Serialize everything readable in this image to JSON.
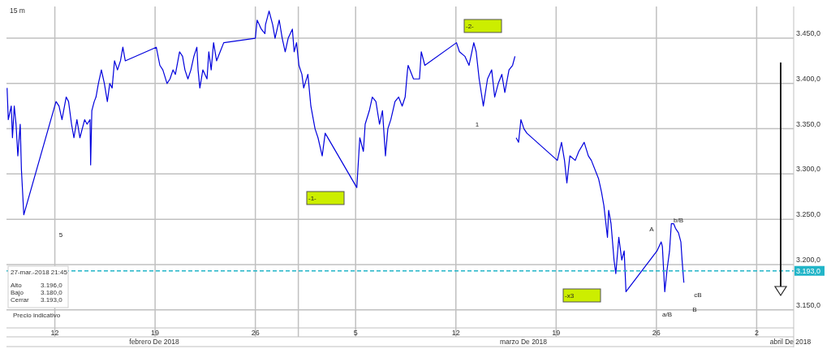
{
  "chart_data": {
    "type": "line",
    "title": "15 m",
    "x": [
      "2018-02-08T16:00",
      "2018-02-08T18:00",
      "2018-02-08T23:00",
      "2018-02-09T01:00",
      "2018-02-09T04:00",
      "2018-02-09T07:00",
      "2018-02-09T10:00",
      "2018-02-09T14:00",
      "2018-02-09T16:00",
      "2018-02-09T20:00",
      "2018-02-12T02:00",
      "2018-02-12T07:00",
      "2018-02-12T12:00",
      "2018-02-12T19:00",
      "2018-02-12T23:00",
      "2018-02-13T04:00",
      "2018-02-13T08:00",
      "2018-02-13T13:00",
      "2018-02-13T18:00",
      "2018-02-14T02:00",
      "2018-02-14T06:00",
      "2018-02-14T11:00",
      "2018-02-14T12:00",
      "2018-02-14T14:00",
      "2018-02-14T18:00",
      "2018-02-14T21:00",
      "2018-02-15T01:00",
      "2018-02-15T06:00",
      "2018-02-15T11:00",
      "2018-02-15T16:00",
      "2018-02-15T20:00",
      "2018-02-16T00:00",
      "2018-02-16T04:00",
      "2018-02-16T09:00",
      "2018-02-16T14:00",
      "2018-02-16T18:00",
      "2018-02-16T22:00",
      "2018-02-19T02:00",
      "2018-02-19T08:00",
      "2018-02-19T13:00",
      "2018-02-19T20:00",
      "2018-02-20T01:00",
      "2018-02-20T06:00",
      "2018-02-20T10:00",
      "2018-02-20T17:00",
      "2018-02-20T22:00",
      "2018-02-21T02:00",
      "2018-02-21T07:00",
      "2018-02-21T12:00",
      "2018-02-21T17:00",
      "2018-02-21T22:00",
      "2018-02-22T00:00",
      "2018-02-22T03:00",
      "2018-02-22T08:00",
      "2018-02-22T15:00",
      "2018-02-22T18:00",
      "2018-02-22T22:00",
      "2018-02-23T02:00",
      "2018-02-23T07:00",
      "2018-02-23T13:00",
      "2018-02-23T19:00",
      "2018-02-26T00:00",
      "2018-02-26T03:00",
      "2018-02-26T10:00",
      "2018-02-26T16:00",
      "2018-02-26T17:00",
      "2018-02-26T23:00",
      "2018-02-27T05:00",
      "2018-02-27T09:00",
      "2018-02-27T16:00",
      "2018-02-27T21:00",
      "2018-02-28T02:00",
      "2018-02-28T07:00",
      "2018-02-28T14:00",
      "2018-02-28T17:00",
      "2018-02-28T21:00",
      "2018-03-01T01:00",
      "2018-03-01T06:00",
      "2018-03-01T09:00",
      "2018-03-01T16:00",
      "2018-03-01T21:00",
      "2018-03-02T04:00",
      "2018-03-02T09:00",
      "2018-03-02T16:00",
      "2018-03-02T21:00",
      "2018-03-05T02:00",
      "2018-03-05T07:00",
      "2018-03-05T13:00",
      "2018-03-05T16:00",
      "2018-03-05T23:00",
      "2018-03-06T04:00",
      "2018-03-06T10:00",
      "2018-03-06T16:00",
      "2018-03-06T21:00",
      "2018-03-07T02:00",
      "2018-03-07T06:00",
      "2018-03-07T11:00",
      "2018-03-07T18:00",
      "2018-03-08T00:00",
      "2018-03-08T06:00",
      "2018-03-08T11:00",
      "2018-03-08T15:00",
      "2018-03-08T16:00",
      "2018-03-09T01:00",
      "2018-03-09T11:00",
      "2018-03-09T14:00",
      "2018-03-09T20:00",
      "2018-03-12T01:00",
      "2018-03-12T06:00",
      "2018-03-12T15:00",
      "2018-03-12T22:00",
      "2018-03-13T06:00",
      "2018-03-13T10:00",
      "2018-03-13T15:00",
      "2018-03-13T22:00",
      "2018-03-14T05:00",
      "2018-03-14T12:00",
      "2018-03-14T17:00",
      "2018-03-14T23:00",
      "2018-03-15T05:00",
      "2018-03-15T10:00",
      "2018-03-15T17:00",
      "2018-03-15T23:00",
      "2018-03-16T03:00",
      "2018-03-16T04:00",
      "2018-03-16T05:00",
      "2018-03-16T09:00",
      "2018-03-16T13:00",
      "2018-03-16T18:00",
      "2018-03-16T23:00",
      "2018-03-19T02:00",
      "2018-03-19T09:00",
      "2018-03-19T14:00",
      "2018-03-19T18:00",
      "2018-03-19T23:00",
      "2018-03-20T08:00",
      "2018-03-20T14:00",
      "2018-03-20T23:00",
      "2018-03-21T06:00",
      "2018-03-21T11:00",
      "2018-03-21T23:00",
      "2018-03-22T04:00",
      "2018-03-22T08:00",
      "2018-03-22T14:00",
      "2018-03-22T16:00",
      "2018-03-22T20:00",
      "2018-03-23T01:00",
      "2018-03-23T04:00",
      "2018-03-23T09:00",
      "2018-03-23T14:00",
      "2018-03-23T18:00",
      "2018-03-23T21:00",
      "2018-03-26T01:00",
      "2018-03-26T08:00",
      "2018-03-26T10:00",
      "2018-03-26T14:00",
      "2018-03-26T18:00",
      "2018-03-26T22:00",
      "2018-03-27T01:00",
      "2018-03-27T05:00",
      "2018-03-27T08:00",
      "2018-03-27T13:00",
      "2018-03-27T17:00",
      "2018-03-27T19:00",
      "2018-03-27T22:00"
    ],
    "series": [
      {
        "color": "#0000dd",
        "values": [
          3395,
          3360,
          3375,
          3340,
          3375,
          3355,
          3320,
          3355,
          3305,
          3255,
          3380,
          3375,
          3360,
          3385,
          3380,
          3355,
          3340,
          3360,
          3340,
          3360,
          3355,
          3360,
          3310,
          3370,
          3380,
          3385,
          3400,
          3415,
          3400,
          3380,
          3400,
          3395,
          3425,
          3415,
          3425,
          3440,
          3425,
          3440,
          3420,
          3415,
          3400,
          3405,
          3415,
          3410,
          3435,
          3430,
          3415,
          3405,
          3415,
          3430,
          3440,
          3415,
          3395,
          3415,
          3405,
          3435,
          3415,
          3445,
          3425,
          3435,
          3445,
          3450,
          3470,
          3460,
          3455,
          3465,
          3480,
          3465,
          3450,
          3470,
          3450,
          3435,
          3450,
          3460,
          3435,
          3445,
          3420,
          3410,
          3395,
          3410,
          3375,
          3350,
          3340,
          3320,
          3345,
          3285,
          3340,
          3325,
          3355,
          3370,
          3385,
          3380,
          3355,
          3370,
          3320,
          3350,
          3360,
          3380,
          3385,
          3375,
          3385,
          3415,
          3420,
          3405,
          3405,
          3435,
          3420,
          3445,
          3435,
          3430,
          3420,
          3445,
          3435,
          3405,
          3375,
          3405,
          3415,
          3385,
          3400,
          3410,
          3390,
          3415,
          3420,
          3430,
          null,
          3340,
          3335,
          3360,
          3350,
          3345,
          3315,
          3335,
          3315,
          3290,
          3320,
          3315,
          3325,
          3335,
          3320,
          3315,
          3295,
          3280,
          3265,
          3230,
          3260,
          3245,
          3205,
          3190,
          3230,
          3205,
          3215,
          3170,
          3215,
          3225,
          3220,
          3170,
          3195,
          3215,
          3245,
          3245,
          3240,
          3235,
          3225,
          3205,
          3180
        ]
      }
    ],
    "xlim": [
      "2018-02-08T15:00",
      "2018-04-04T14:00"
    ],
    "xticks": [
      {
        "value": "2018-02-12",
        "label": "12"
      },
      {
        "value": "2018-02-19",
        "label": "19"
      },
      {
        "value": "2018-02-26",
        "label": "26"
      },
      {
        "value": "2018-03-01",
        "label": null
      },
      {
        "value": "2018-03-05",
        "label": "5"
      },
      {
        "value": "2018-03-12",
        "label": "12"
      },
      {
        "value": "2018-03-19",
        "label": "19"
      },
      {
        "value": "2018-03-26",
        "label": "26"
      },
      {
        "value": "2018-04-02",
        "label": "2"
      }
    ],
    "ylim": [
      3130,
      3485
    ],
    "yticks": [
      {
        "value": 3150,
        "label": "3.150,0"
      },
      {
        "value": 3200,
        "label": "3.200,0"
      },
      {
        "value": 3250,
        "label": "3.250,0"
      },
      {
        "value": 3300,
        "label": "3.300,0"
      },
      {
        "value": 3350,
        "label": "3.350,0"
      },
      {
        "value": 3400,
        "label": "3.400,0"
      },
      {
        "value": 3450,
        "label": "3.450,0"
      }
    ],
    "grid": true,
    "ref_lines": [
      {
        "axis": "y",
        "value": 3193,
        "label": "3.193,0",
        "color": "#22b5c8",
        "line_style": "dashed"
      }
    ],
    "annotations": [
      "-1-",
      "-2-",
      "-x3",
      "5",
      "1",
      "A",
      "b/B",
      "cB",
      "a/B",
      "B",
      "febrero De 2018",
      "marzo De 2018",
      "abril De 2018",
      "27-mar.-2018 21:45",
      "Alto",
      "3.196,0",
      "Bajo",
      "3.180,0",
      "Cerrar",
      "3.193,0",
      "Precio indicativo"
    ]
  }
}
